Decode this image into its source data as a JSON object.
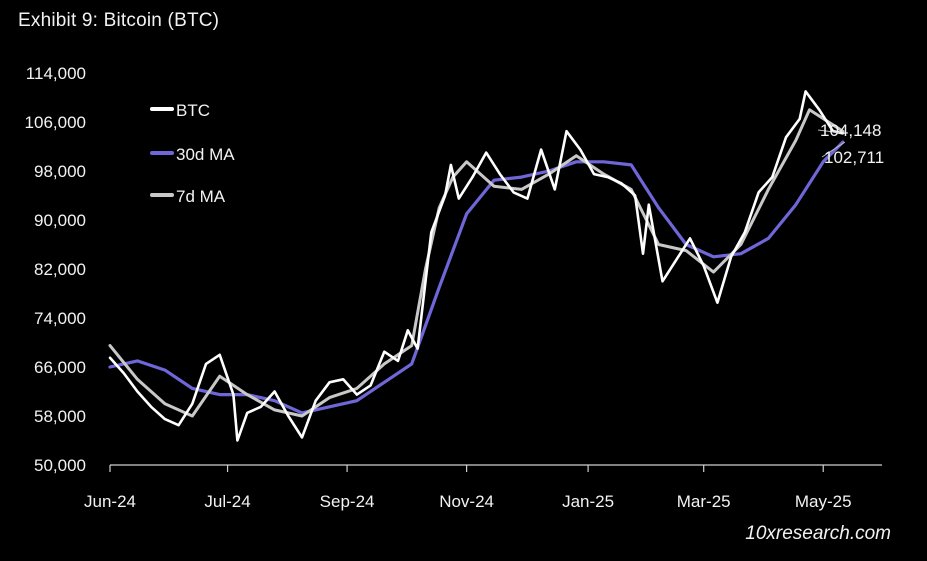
{
  "header": {
    "title": "Exhibit 9: Bitcoin (BTC)"
  },
  "footer": {
    "watermark": "10xresearch.com"
  },
  "colors": {
    "background": "#000000",
    "btc": "#ffffff",
    "ma30": "#6f66d8",
    "ma7": "#c8c8c8"
  },
  "chart_data": {
    "type": "line",
    "title": "Exhibit 9: Bitcoin (BTC)",
    "xlabel": "",
    "ylabel": "",
    "ylim": [
      50000,
      114000
    ],
    "yticks": [
      50000,
      58000,
      66000,
      74000,
      82000,
      90000,
      98000,
      106000,
      114000
    ],
    "ytick_labels": [
      "50,000",
      "58,000",
      "66,000",
      "74,000",
      "82,000",
      "90,000",
      "98,000",
      "106,000",
      "114,000"
    ],
    "xlim": [
      "2024-06-01",
      "2025-06-30"
    ],
    "xticks": [
      "2024-06-01",
      "2024-07-31",
      "2024-09-30",
      "2024-11-30",
      "2025-01-31",
      "2025-03-31",
      "2025-05-31"
    ],
    "xtick_labels": [
      "Jun-24",
      "Jul-24",
      "Sep-24",
      "Nov-24",
      "Jan-25",
      "Mar-25",
      "May-25"
    ],
    "grid": false,
    "legend": "top-left",
    "end_labels": [
      "104,148",
      "102,711"
    ],
    "series": [
      {
        "name": "BTC",
        "color": "#ffffff",
        "x": [
          "2024-06-01",
          "2024-06-08",
          "2024-06-15",
          "2024-06-22",
          "2024-06-29",
          "2024-07-06",
          "2024-07-13",
          "2024-07-20",
          "2024-07-27",
          "2024-08-03",
          "2024-08-05",
          "2024-08-10",
          "2024-08-17",
          "2024-08-24",
          "2024-08-31",
          "2024-09-07",
          "2024-09-14",
          "2024-09-21",
          "2024-09-28",
          "2024-10-05",
          "2024-10-12",
          "2024-10-19",
          "2024-10-26",
          "2024-10-31",
          "2024-11-05",
          "2024-11-12",
          "2024-11-19",
          "2024-11-22",
          "2024-11-26",
          "2024-12-03",
          "2024-12-10",
          "2024-12-17",
          "2024-12-24",
          "2024-12-31",
          "2025-01-07",
          "2025-01-14",
          "2025-01-20",
          "2025-01-27",
          "2025-02-03",
          "2025-02-10",
          "2025-02-17",
          "2025-02-24",
          "2025-02-28",
          "2025-03-03",
          "2025-03-10",
          "2025-03-17",
          "2025-03-24",
          "2025-03-31",
          "2025-04-07",
          "2025-04-14",
          "2025-04-21",
          "2025-04-28",
          "2025-05-05",
          "2025-05-12",
          "2025-05-19",
          "2025-05-22",
          "2025-05-29",
          "2025-06-05",
          "2025-06-10"
        ],
        "y": [
          67500,
          65000,
          62000,
          59500,
          57500,
          56500,
          60000,
          66500,
          68000,
          61500,
          54000,
          58500,
          59500,
          62000,
          58000,
          54500,
          60500,
          63500,
          64000,
          61500,
          63000,
          68500,
          67000,
          72000,
          69000,
          88000,
          94000,
          99000,
          93500,
          97000,
          101000,
          97500,
          94500,
          93500,
          101500,
          95000,
          104500,
          101500,
          97500,
          97000,
          96000,
          94000,
          84500,
          92500,
          80000,
          83500,
          87000,
          82500,
          76500,
          84000,
          88000,
          94500,
          97000,
          103500,
          106500,
          111000,
          108000,
          104500,
          104148
        ]
      },
      {
        "name": "30d MA",
        "color": "#6f66d8",
        "x": [
          "2024-06-01",
          "2024-06-15",
          "2024-06-29",
          "2024-07-13",
          "2024-07-27",
          "2024-08-10",
          "2024-08-24",
          "2024-09-07",
          "2024-09-21",
          "2024-10-05",
          "2024-10-19",
          "2024-11-02",
          "2024-11-16",
          "2024-11-30",
          "2024-12-14",
          "2024-12-28",
          "2025-01-11",
          "2025-01-25",
          "2025-02-08",
          "2025-02-22",
          "2025-03-08",
          "2025-03-22",
          "2025-04-05",
          "2025-04-19",
          "2025-05-03",
          "2025-05-17",
          "2025-05-31",
          "2025-06-10"
        ],
        "y": [
          66000,
          67000,
          65500,
          62500,
          61500,
          61500,
          60500,
          58500,
          59500,
          60500,
          63500,
          66500,
          79000,
          91000,
          96500,
          97000,
          98000,
          99500,
          99500,
          99000,
          92000,
          86000,
          84000,
          84500,
          87000,
          92500,
          99500,
          102711
        ]
      },
      {
        "name": "7d MA",
        "color": "#c8c8c8",
        "x": [
          "2024-06-01",
          "2024-06-15",
          "2024-06-29",
          "2024-07-13",
          "2024-07-27",
          "2024-08-10",
          "2024-08-24",
          "2024-09-07",
          "2024-09-21",
          "2024-10-05",
          "2024-10-19",
          "2024-11-02",
          "2024-11-09",
          "2024-11-16",
          "2024-11-23",
          "2024-11-30",
          "2024-12-14",
          "2024-12-28",
          "2025-01-11",
          "2025-01-25",
          "2025-02-08",
          "2025-02-22",
          "2025-03-08",
          "2025-03-22",
          "2025-04-05",
          "2025-04-19",
          "2025-05-03",
          "2025-05-17",
          "2025-05-24",
          "2025-06-10"
        ],
        "y": [
          69500,
          64000,
          60000,
          58000,
          64500,
          61500,
          59000,
          58000,
          61000,
          62500,
          66500,
          69500,
          82000,
          92000,
          97000,
          99500,
          95500,
          95000,
          97500,
          100500,
          97500,
          95000,
          86000,
          85000,
          81500,
          86000,
          95000,
          103000,
          108000,
          104500
        ]
      }
    ]
  }
}
